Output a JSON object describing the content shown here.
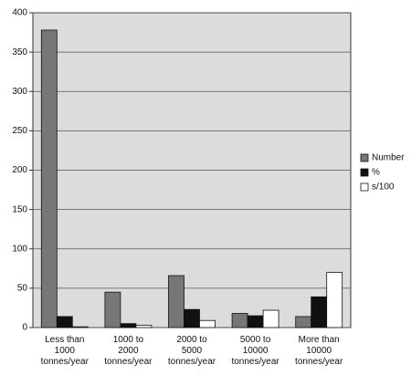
{
  "chart_data": {
    "type": "bar",
    "categories": [
      "Less than\n1000\ntonnes/year",
      "1000 to\n2000\ntonnes/year",
      "2000 to\n5000\ntonnes/year",
      "5000 to\n10000\ntonnes/year",
      "More than\n10000\ntonnes/year"
    ],
    "series": [
      {
        "name": "Number",
        "color": "#777777",
        "values": [
          378,
          45,
          66,
          18,
          14
        ]
      },
      {
        "name": "%",
        "color": "#111111",
        "values": [
          14,
          5,
          23,
          15,
          39
        ]
      },
      {
        "name": "s/100",
        "color": "#ffffff",
        "values": [
          1,
          3,
          9,
          22,
          70
        ]
      }
    ],
    "ylim": [
      0,
      400
    ],
    "yticks": [
      0,
      50,
      100,
      150,
      200,
      250,
      300,
      350,
      400
    ],
    "grid": true,
    "legend": "right"
  }
}
